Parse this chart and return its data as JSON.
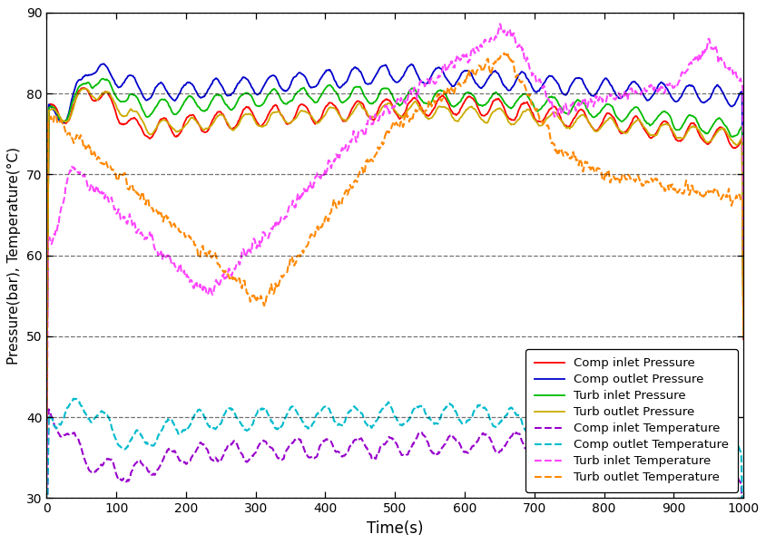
{
  "title": "",
  "xlabel": "Time(s)",
  "ylabel": "Pressure(bar), Temperature(°C)",
  "xlim": [
    0,
    1000
  ],
  "ylim": [
    30,
    90
  ],
  "yticks": [
    30,
    40,
    50,
    60,
    70,
    80,
    90
  ],
  "xticks": [
    0,
    100,
    200,
    300,
    400,
    500,
    600,
    700,
    800,
    900,
    1000
  ],
  "legend_entries": [
    {
      "label": "Comp inlet Pressure",
      "color": "#ff0000",
      "linestyle": "solid",
      "lw": 1.3
    },
    {
      "label": "Comp outlet Pressure",
      "color": "#0000cc",
      "linestyle": "solid",
      "lw": 1.3
    },
    {
      "label": "Turb inlet Pressure",
      "color": "#00bb00",
      "linestyle": "solid",
      "lw": 1.3
    },
    {
      "label": "Turb outlet Pressure",
      "color": "#ccaa00",
      "linestyle": "solid",
      "lw": 1.3
    },
    {
      "label": "Comp inlet Temperature",
      "color": "#9900cc",
      "linestyle": "dashed",
      "lw": 1.5
    },
    {
      "label": "Comp outlet Temperature",
      "color": "#00bbcc",
      "linestyle": "dashed",
      "lw": 1.5
    },
    {
      "label": "Turb inlet Temperature",
      "color": "#ff44ff",
      "linestyle": "dashed",
      "lw": 1.5
    },
    {
      "label": "Turb outlet Temperature",
      "color": "#ff8800",
      "linestyle": "dashed",
      "lw": 1.5
    }
  ],
  "grid_color": "#000000",
  "grid_linestyle": "--",
  "grid_alpha": 0.55,
  "bg_color": "#ffffff"
}
